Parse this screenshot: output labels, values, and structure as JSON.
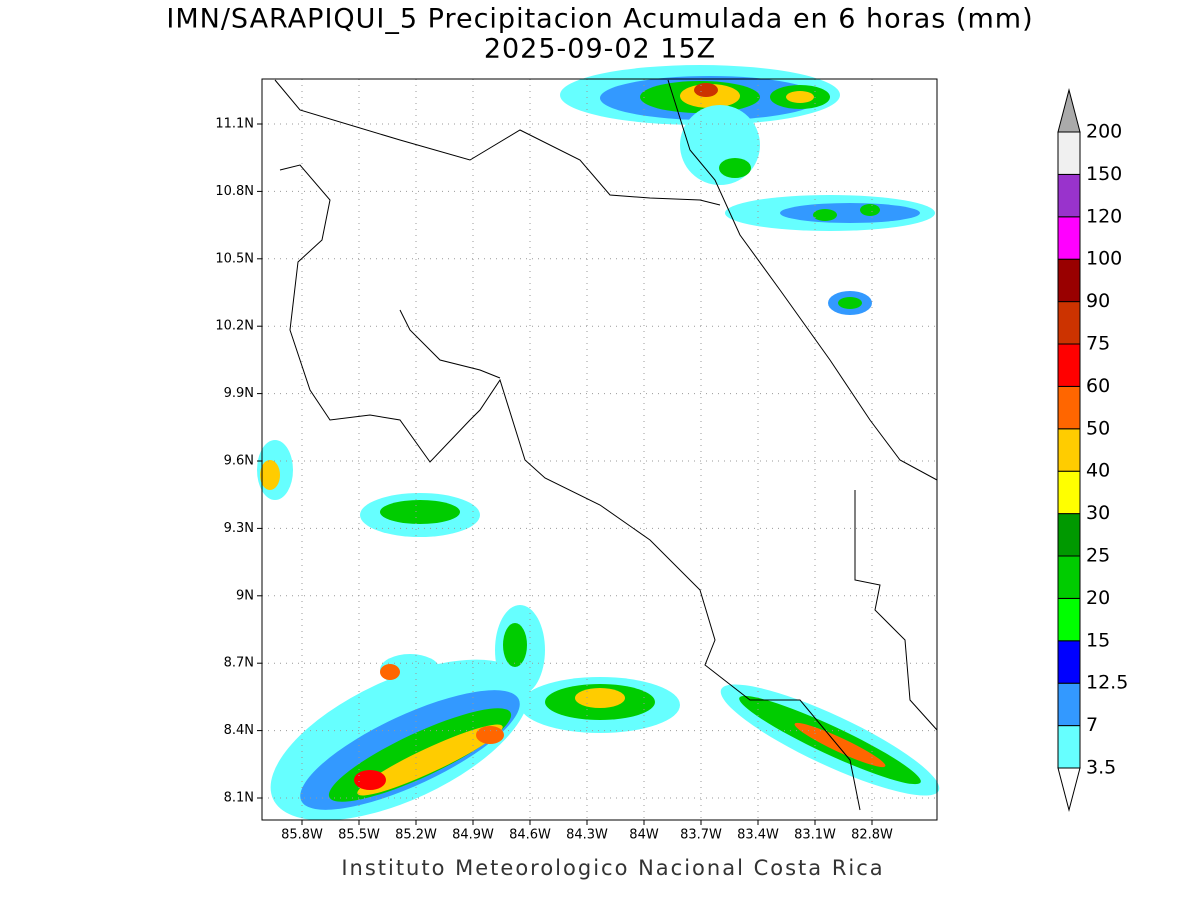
{
  "title": "IMN/SARAPIQUI_5 Precipitacion Acumulada en 6 horas (mm)",
  "subtitle": "2025-09-02 15Z",
  "footer": "Instituto Meteorologico Nacional Costa Rica",
  "map": {
    "lat_labels": [
      "11.1N",
      "10.8N",
      "10.5N",
      "10.2N",
      "9.9N",
      "9.6N",
      "9.3N",
      "9N",
      "8.7N",
      "8.4N",
      "8.1N"
    ],
    "lon_labels": [
      "85.8W",
      "85.5W",
      "85.2W",
      "84.9W",
      "84.6W",
      "84.3W",
      "84W",
      "83.7W",
      "83.4W",
      "83.1W",
      "82.8W"
    ]
  },
  "colorbar": {
    "levels": [
      3.5,
      7,
      12.5,
      15,
      20,
      25,
      30,
      40,
      50,
      60,
      75,
      90,
      100,
      120,
      150,
      200
    ],
    "colors": [
      "#66ffff",
      "#3399ff",
      "#0000ff",
      "#00ff00",
      "#00cc00",
      "#009900",
      "#ffff00",
      "#ffcc00",
      "#ff6600",
      "#ff0000",
      "#cc3300",
      "#990000",
      "#ff00ff",
      "#9933cc",
      "#f0f0f0"
    ],
    "under_color": "#ffffff",
    "over_color": "#aaaaaa"
  }
}
